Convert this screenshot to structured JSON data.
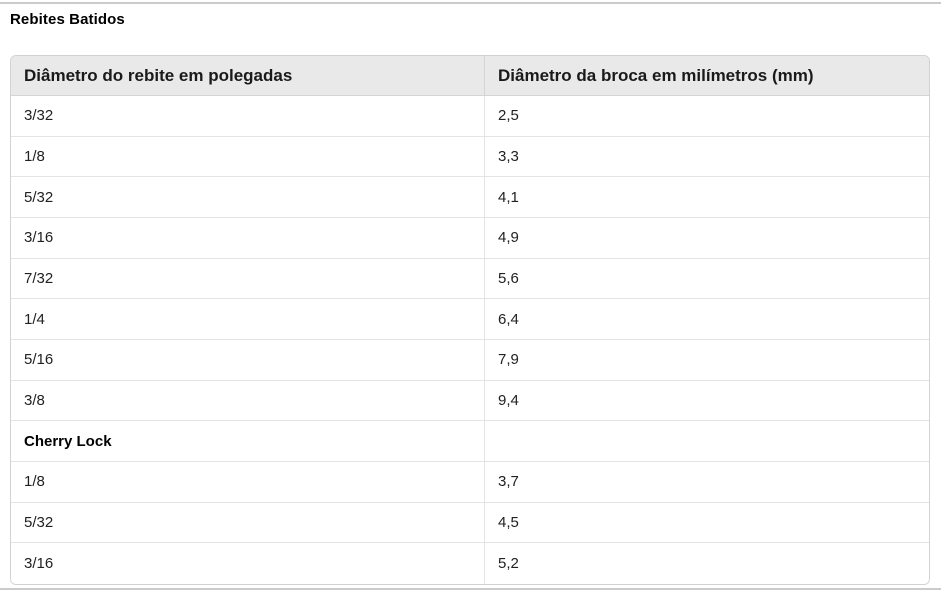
{
  "page": {
    "title": "Rebites Batidos"
  },
  "colors": {
    "header_bg": "#e9e9e9",
    "table_border": "#d2d2d2",
    "row_divider": "#e4e4e4",
    "page_rule": "#cbcbcb",
    "text": "#212121"
  },
  "table": {
    "columns": [
      "Diâmetro do rebite em polegadas",
      "Diâmetro da broca em milímetros (mm)"
    ],
    "rows": [
      {
        "inches": "3/32",
        "mm": "2,5"
      },
      {
        "inches": "1/8",
        "mm": "3,3"
      },
      {
        "inches": "5/32",
        "mm": "4,1"
      },
      {
        "inches": "3/16",
        "mm": "4,9"
      },
      {
        "inches": "7/32",
        "mm": "5,6"
      },
      {
        "inches": "1/4",
        "mm": "6,4"
      },
      {
        "inches": "5/16",
        "mm": "7,9"
      },
      {
        "inches": "3/8",
        "mm": "9,4"
      },
      {
        "inches": "Cherry Lock",
        "mm": "",
        "subheader": true
      },
      {
        "inches": "1/8",
        "mm": "3,7"
      },
      {
        "inches": "5/32",
        "mm": "4,5"
      },
      {
        "inches": "3/16",
        "mm": "5,2"
      }
    ]
  }
}
